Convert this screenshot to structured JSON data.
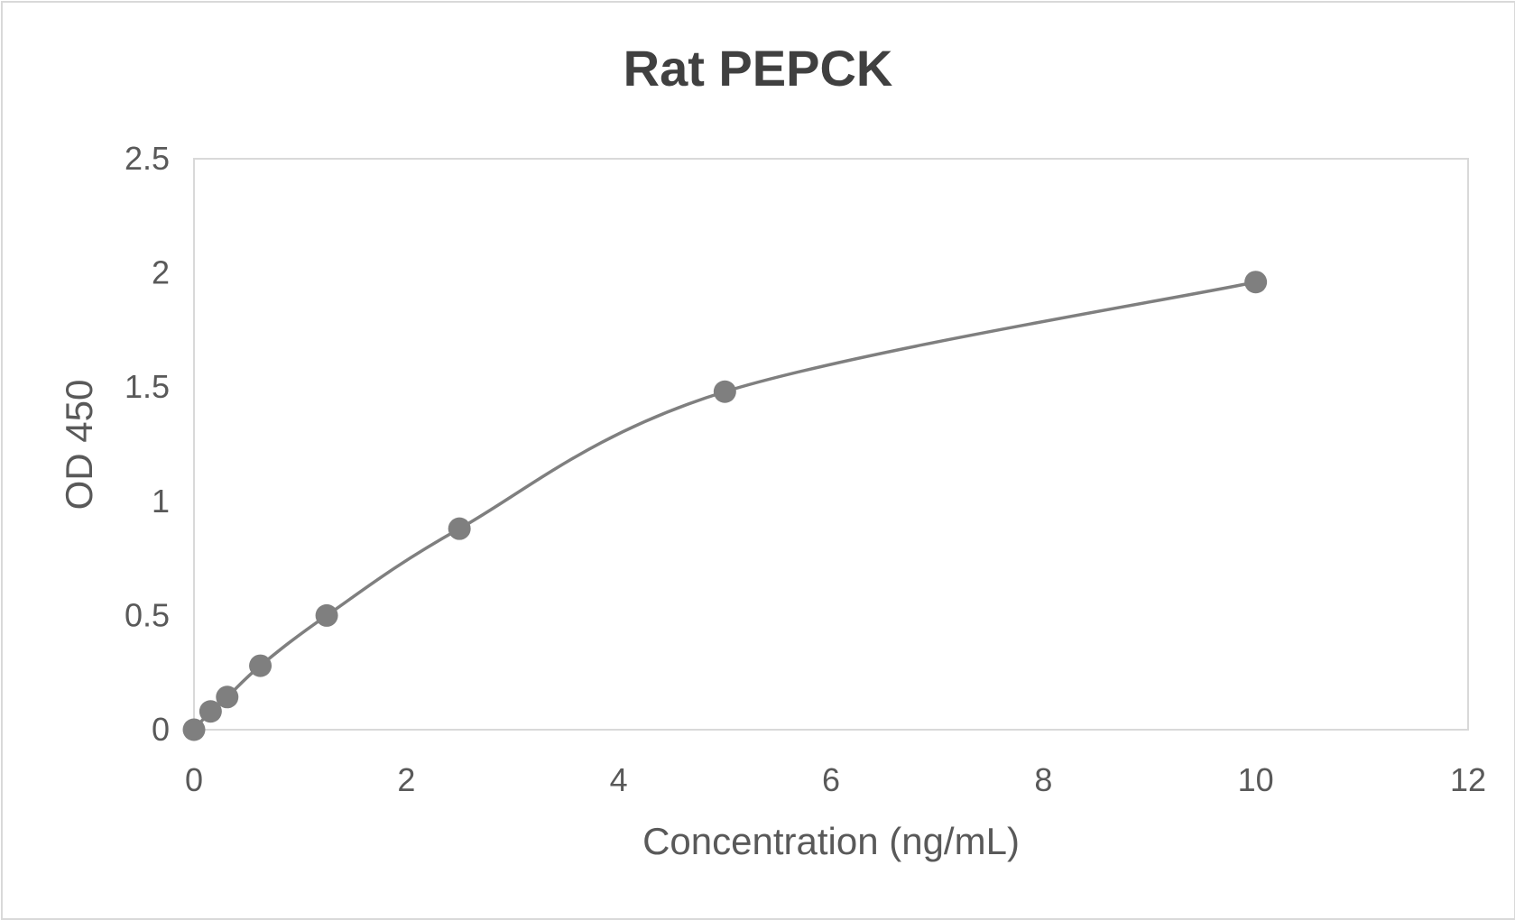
{
  "chart_data": {
    "type": "scatter",
    "title": "Rat PEPCK",
    "xlabel": "Concentration (ng/mL)",
    "ylabel": "OD 450",
    "xlim": [
      0,
      12
    ],
    "ylim": [
      0,
      2.5
    ],
    "x_ticks": [
      "0",
      "2",
      "4",
      "6",
      "8",
      "10",
      "12"
    ],
    "y_ticks": [
      "0",
      "0.5",
      "1",
      "1.5",
      "2",
      "2.5"
    ],
    "grid": false,
    "legend": "none",
    "smoothed_line": true,
    "series": [
      {
        "x": [
          0,
          0.156,
          0.3125,
          0.625,
          1.25,
          2.5,
          5,
          10
        ],
        "y": [
          0,
          0.08,
          0.143,
          0.28,
          0.5,
          0.88,
          1.48,
          1.96
        ],
        "color": "#7f7f7f"
      }
    ]
  }
}
